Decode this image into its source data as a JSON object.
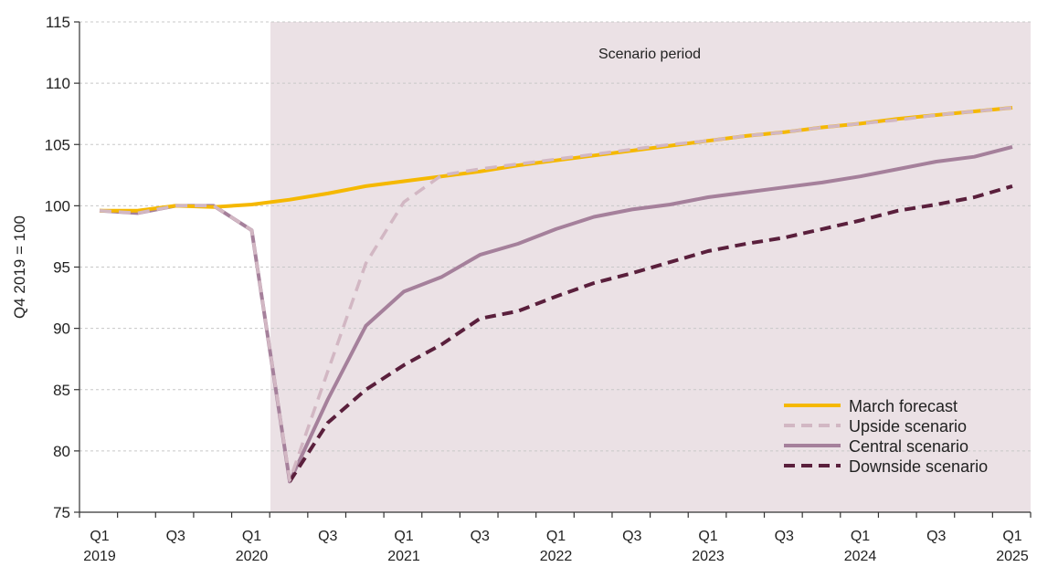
{
  "chart_data": {
    "type": "line",
    "title": "",
    "xlabel": "",
    "ylabel": "Q4 2019 = 100",
    "ylim": [
      75,
      115
    ],
    "yticks": [
      75,
      80,
      85,
      90,
      95,
      100,
      105,
      110,
      115
    ],
    "grid": "horizontal dashed",
    "shaded_region": {
      "label": "Scenario period",
      "from_x": "2020 Q1",
      "to_x": "2025 Q1",
      "color": "#ebe1e5"
    },
    "x": [
      "2019 Q1",
      "2019 Q2",
      "2019 Q3",
      "2019 Q4",
      "2020 Q1",
      "2020 Q2",
      "2020 Q3",
      "2020 Q4",
      "2021 Q1",
      "2021 Q2",
      "2021 Q3",
      "2021 Q4",
      "2022 Q1",
      "2022 Q2",
      "2022 Q3",
      "2022 Q4",
      "2023 Q1",
      "2023 Q2",
      "2023 Q3",
      "2023 Q4",
      "2024 Q1",
      "2024 Q2",
      "2024 Q3",
      "2024 Q4",
      "2025 Q1"
    ],
    "xtick_labels": [
      {
        "index": 0,
        "quarter": "Q1",
        "year": "2019"
      },
      {
        "index": 2,
        "quarter": "Q3",
        "year": ""
      },
      {
        "index": 4,
        "quarter": "Q1",
        "year": "2020"
      },
      {
        "index": 6,
        "quarter": "Q3",
        "year": ""
      },
      {
        "index": 8,
        "quarter": "Q1",
        "year": "2021"
      },
      {
        "index": 10,
        "quarter": "Q3",
        "year": ""
      },
      {
        "index": 12,
        "quarter": "Q1",
        "year": "2022"
      },
      {
        "index": 14,
        "quarter": "Q3",
        "year": ""
      },
      {
        "index": 16,
        "quarter": "Q1",
        "year": "2023"
      },
      {
        "index": 18,
        "quarter": "Q3",
        "year": ""
      },
      {
        "index": 20,
        "quarter": "Q1",
        "year": "2024"
      },
      {
        "index": 22,
        "quarter": "Q3",
        "year": ""
      },
      {
        "index": 24,
        "quarter": "Q1",
        "year": "2025"
      }
    ],
    "legend_position": "bottom-right",
    "series": [
      {
        "name": "March forecast",
        "color": "#f5b800",
        "dash": "solid",
        "values": [
          99.6,
          99.6,
          100.0,
          99.9,
          100.1,
          100.5,
          101.0,
          101.6,
          102.0,
          102.4,
          102.8,
          103.3,
          103.7,
          104.1,
          104.5,
          104.9,
          105.3,
          105.7,
          106.0,
          106.4,
          106.7,
          107.1,
          107.4,
          107.7,
          108.0
        ]
      },
      {
        "name": "Upside scenario",
        "color": "#d2b7c3",
        "dash": "dashed",
        "values": [
          99.6,
          99.4,
          100.0,
          100.0,
          98.0,
          77.6,
          86.5,
          95.3,
          100.3,
          102.5,
          103.0,
          103.4,
          103.8,
          104.2,
          104.6,
          105.0,
          105.3,
          105.7,
          106.0,
          106.4,
          106.7,
          107.0,
          107.4,
          107.7,
          108.0
        ]
      },
      {
        "name": "Central scenario",
        "color": "#a5809b",
        "dash": "solid",
        "values": [
          99.6,
          99.4,
          100.0,
          100.0,
          98.0,
          77.5,
          84.2,
          90.2,
          93.0,
          94.2,
          96.0,
          96.9,
          98.1,
          99.1,
          99.7,
          100.1,
          100.7,
          101.1,
          101.5,
          101.9,
          102.4,
          103.0,
          103.6,
          104.0,
          104.8
        ]
      },
      {
        "name": "Downside scenario",
        "color": "#5a1f3c",
        "dash": "dashed",
        "values": [
          null,
          null,
          null,
          null,
          null,
          77.5,
          82.3,
          85.0,
          87.0,
          88.7,
          90.8,
          91.4,
          92.6,
          93.7,
          94.5,
          95.4,
          96.3,
          96.9,
          97.4,
          98.1,
          98.8,
          99.6,
          100.1,
          100.7,
          101.6
        ]
      }
    ]
  }
}
